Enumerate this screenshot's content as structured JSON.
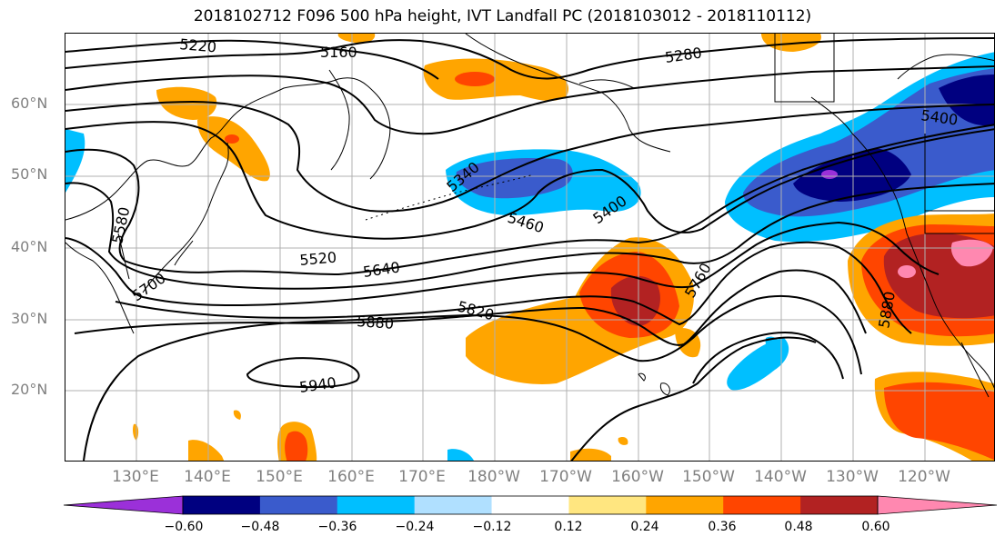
{
  "title": "2018102712 F096 500 hPa height, IVT Landfall PC (2018103012 - 2018110112)",
  "lat_labels": [
    "60°N",
    "50°N",
    "40°N",
    "30°N",
    "20°N"
  ],
  "lon_labels": [
    "130°E",
    "140°E",
    "150°E",
    "160°E",
    "170°E",
    "180°W",
    "170°W",
    "160°W",
    "150°W",
    "140°W",
    "130°W",
    "120°W"
  ],
  "contour_labels": [
    "5220",
    "5160",
    "5280",
    "5400",
    "5340",
    "5460",
    "5400",
    "5580",
    "5520",
    "5640",
    "5760",
    "5700",
    "5820",
    "5880",
    "5880",
    "5940"
  ],
  "colorbar": {
    "colors": [
      "#9b30d9",
      "#000080",
      "#3a5bcc",
      "#00bfff",
      "#b0e0ff",
      "#ffffff",
      "#ffe680",
      "#ffa500",
      "#ff4500",
      "#b22222",
      "#ff88b0"
    ],
    "ticks": [
      "−0.60",
      "−0.48",
      "−0.36",
      "−0.24",
      "−0.12",
      "0.12",
      "0.24",
      "0.36",
      "0.48",
      "0.60"
    ]
  }
}
